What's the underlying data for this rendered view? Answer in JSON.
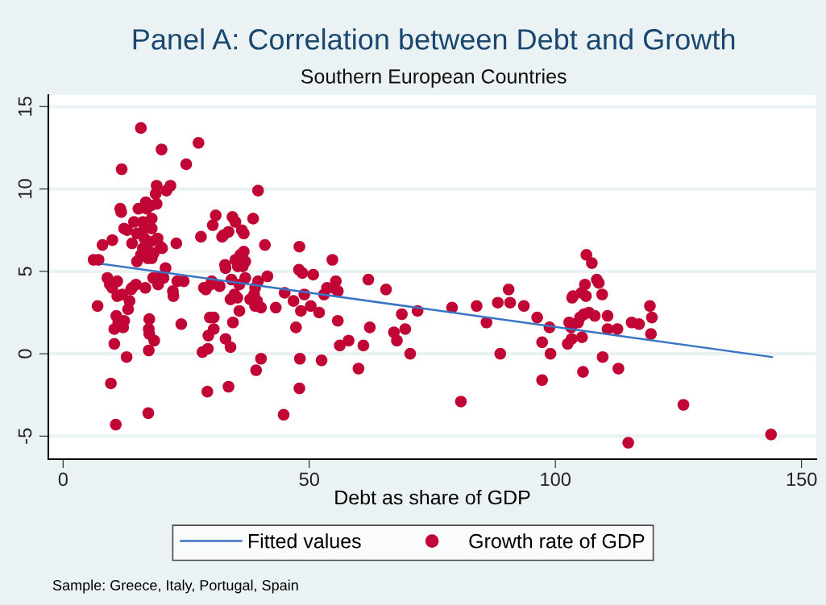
{
  "chart_data": {
    "type": "scatter",
    "title": "Panel A: Correlation between Debt and Growth",
    "subtitle": "Southern European Countries",
    "xlabel": "Debt as share of GDP",
    "xlim": [
      -3,
      153
    ],
    "ylim": [
      -6.4,
      15.7
    ],
    "xticks": [
      0,
      50,
      100,
      150
    ],
    "yticks": [
      -5,
      0,
      5,
      10,
      15
    ],
    "grid": "y",
    "legend": "bottom",
    "marker": "circle",
    "annotations": [
      "Sample: Greece, Italy, Portugal, Spain"
    ],
    "series": [
      {
        "name": "Fitted values",
        "type": "line",
        "color": "#3a75c4",
        "marker": "none",
        "line_style": "solid",
        "x": [
          8,
          144
        ],
        "values": [
          5.45,
          -0.2
        ]
      },
      {
        "name": "Growth rate of GDP",
        "color": "#c10534",
        "x": [
          6.2,
          7.2,
          8,
          10,
          7,
          9,
          9.5,
          10,
          11,
          9.7,
          10.4,
          10.8,
          10.4,
          10.7,
          11,
          11.2,
          11.6,
          11.8,
          12,
          12.2,
          12.4,
          11.9,
          12.4,
          13,
          12.9,
          13.2,
          13.5,
          13.8,
          14,
          14,
          14.4,
          14.8,
          15,
          15,
          15.3,
          15.8,
          15.8,
          16.2,
          16.2,
          16.5,
          16.7,
          16.5,
          16.8,
          17,
          17,
          17.2,
          17.3,
          17.4,
          17.4,
          17.5,
          17.5,
          17.7,
          17.8,
          18,
          18,
          18,
          18.3,
          18.4,
          18.5,
          18.8,
          19,
          19,
          19.2,
          19.3,
          19.4,
          19.8,
          20,
          20.1,
          20.4,
          20.8,
          21,
          21.8,
          22.3,
          22.4,
          23,
          23.2,
          24,
          24.5,
          25,
          27.5,
          28,
          28.3,
          28.6,
          29,
          29.3,
          29.4,
          29.5,
          29.8,
          30,
          30.2,
          30.6,
          30.6,
          30.4,
          31,
          31.8,
          32.3,
          32.6,
          32.9,
          33,
          33,
          33.6,
          33.6,
          34,
          34,
          34.2,
          34.4,
          34.5,
          34.8,
          35,
          35,
          35.4,
          35.5,
          35.8,
          35.8,
          36,
          36.3,
          36.5,
          36.7,
          36.7,
          37,
          37,
          38,
          38.6,
          38.8,
          39,
          39,
          39.2,
          39.4,
          39.6,
          39.6,
          40.2,
          40.2,
          41,
          41.5,
          43.2,
          45,
          44.8,
          46.8,
          47.3,
          48,
          47.9,
          48.1,
          48,
          48.3,
          48.6,
          49,
          50.3,
          50.8,
          52,
          52.5,
          53,
          53.6,
          54.7,
          55,
          55.4,
          55.8,
          55.8,
          56.2,
          58,
          60,
          61,
          62,
          62.3,
          65.6,
          67.2,
          67.8,
          68.8,
          69.5,
          70.5,
          72,
          79,
          80.8,
          84,
          86,
          88.3,
          88.8,
          90.5,
          90.8,
          93.6,
          96.3,
          97.3,
          97.3,
          98.8,
          99,
          102.5,
          102.8,
          103.2,
          103.3,
          103.4,
          103.6,
          104.6,
          105,
          105.3,
          105.4,
          105.6,
          105.8,
          106,
          106.2,
          106.3,
          106.8,
          107.4,
          108,
          108.4,
          108.8,
          109.5,
          109.6,
          110.6,
          110.6,
          112.6,
          112.8,
          114.8,
          115.5,
          117,
          119.2,
          119.4,
          119.6,
          126,
          143.8
        ],
        "values": [
          5.7,
          5.7,
          6.6,
          6.9,
          2.9,
          4.6,
          4.2,
          4.0,
          3.5,
          -1.8,
          1.5,
          2.3,
          0.6,
          -4.3,
          4.4,
          1.9,
          8.8,
          8.6,
          3.6,
          1.6,
          2.0,
          11.2,
          7.6,
          7.5,
          -0.2,
          2.7,
          3.2,
          3.9,
          6.7,
          4.0,
          8.0,
          4.2,
          5.6,
          7.3,
          8.8,
          13.7,
          6.0,
          6.4,
          8.0,
          7.0,
          4.0,
          7.6,
          9.2,
          8.8,
          6.3,
          5.8,
          -3.6,
          0.2,
          1.5,
          2.1,
          1.2,
          6.8,
          9.0,
          8.2,
          7.6,
          5.8,
          4.6,
          6.1,
          0.8,
          9.7,
          10.2,
          9.1,
          7.0,
          4.2,
          4.6,
          6.5,
          12.4,
          6.4,
          4.6,
          5.2,
          9.9,
          10.2,
          3.8,
          3.5,
          6.7,
          4.4,
          1.8,
          4.4,
          11.5,
          12.8,
          7.1,
          0.1,
          4.0,
          3.9,
          -2.3,
          0.3,
          1.1,
          2.2,
          4.2,
          4.4,
          2.2,
          1.5,
          7.8,
          8.4,
          4.1,
          7.1,
          7.2,
          5.4,
          5.2,
          0.9,
          -2.0,
          7.4,
          0.4,
          3.3,
          4.5,
          8.3,
          1.9,
          3.6,
          5.7,
          8.0,
          3.4,
          5.3,
          4.2,
          2.6,
          6.0,
          7.5,
          5.3,
          7.3,
          6.2,
          5.6,
          4.6,
          3.3,
          8.2,
          3.6,
          2.9,
          4.0,
          -1.0,
          3.2,
          4.4,
          9.9,
          -0.3,
          2.8,
          6.6,
          4.7,
          2.8,
          3.7,
          -3.7,
          3.2,
          1.6,
          6.5,
          5.1,
          -0.3,
          -2.1,
          2.6,
          4.9,
          3.6,
          2.9,
          4.8,
          2.5,
          -0.4,
          3.6,
          4.0,
          5.7,
          4.0,
          4.4,
          3.8,
          2.0,
          0.5,
          0.8,
          -0.9,
          0.5,
          4.5,
          1.6,
          3.9,
          1.3,
          0.8,
          2.4,
          1.5,
          0.0,
          2.6,
          2.8,
          -2.9,
          2.9,
          1.9,
          3.1,
          0.0,
          3.9,
          3.1,
          2.9,
          2.2,
          0.7,
          -1.6,
          1.6,
          0.0,
          0.6,
          1.9,
          1.6,
          0.9,
          3.4,
          3.5,
          1.9,
          2.2,
          3.7,
          1.0,
          -1.1,
          2.4,
          4.2,
          3.5,
          6.0,
          2.5,
          5.5,
          2.3,
          4.5,
          4.3,
          3.6,
          -0.2,
          1.5,
          2.3,
          1.5,
          -0.9,
          -5.4,
          1.9,
          1.8,
          2.9,
          1.2,
          2.2,
          -3.1,
          -4.9
        ]
      }
    ]
  }
}
